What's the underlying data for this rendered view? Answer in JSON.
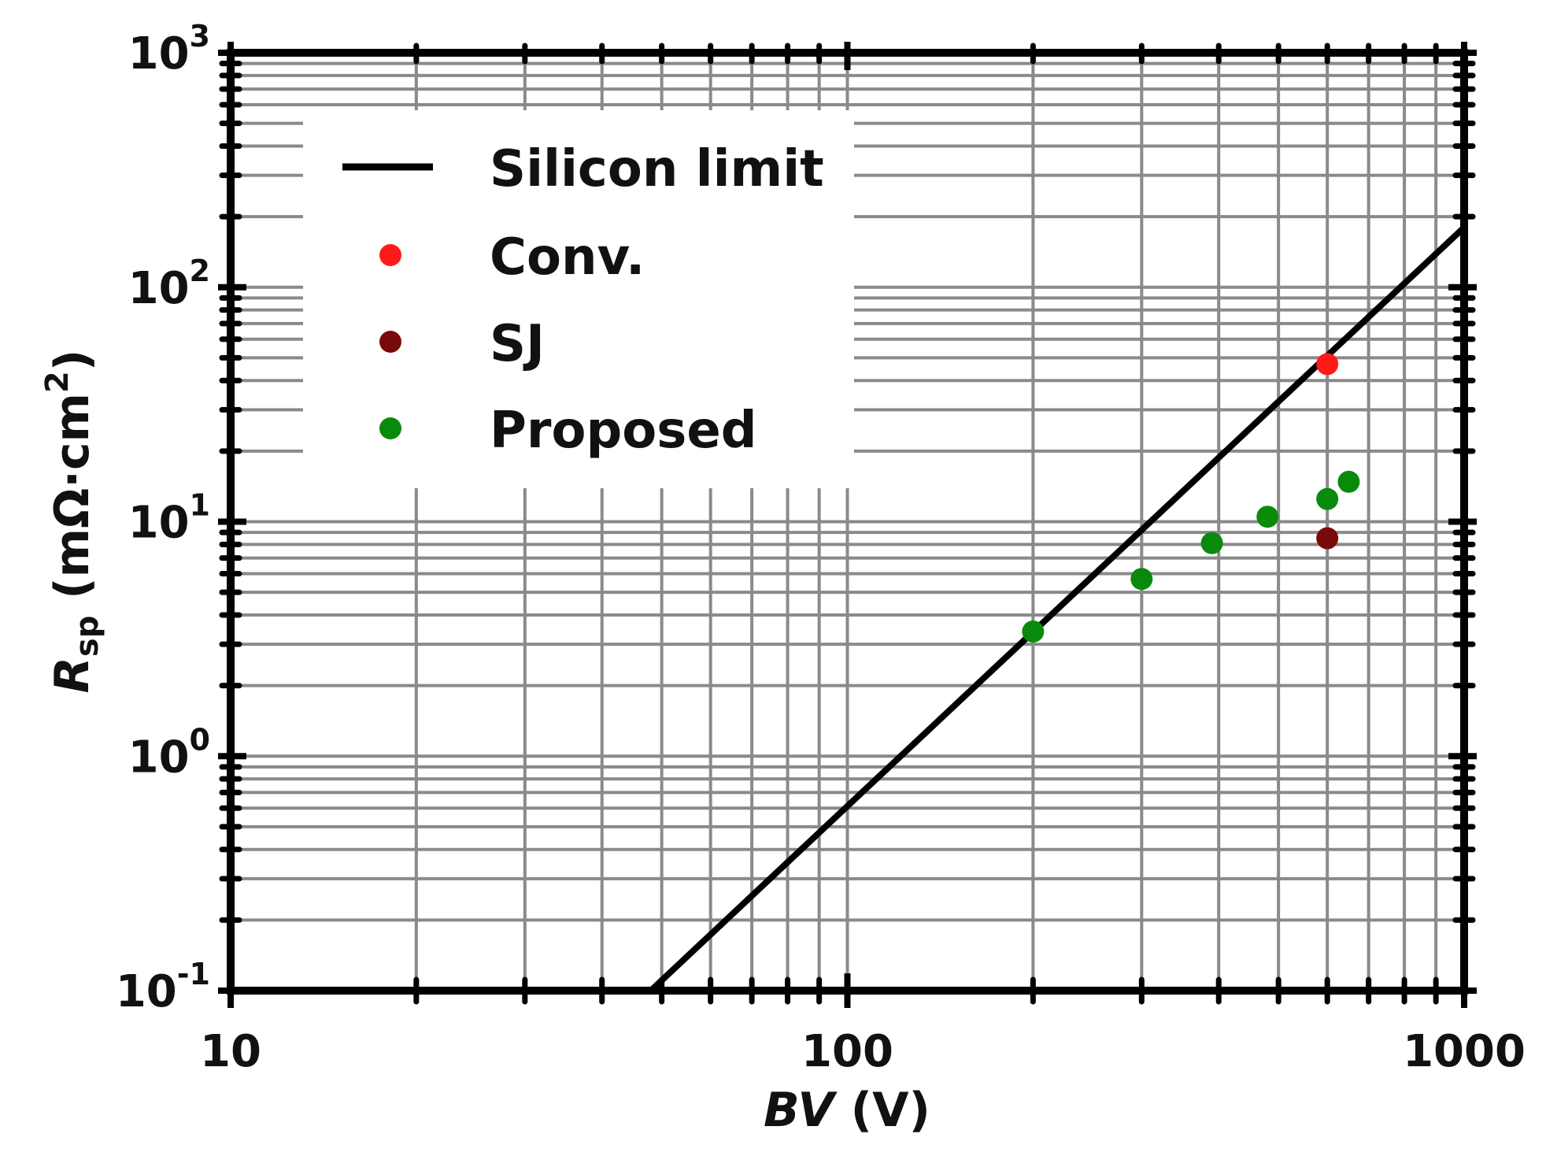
{
  "chart_data": {
    "type": "scatter",
    "x_scale": "log",
    "y_scale": "log",
    "xlim": [
      10,
      1000
    ],
    "ylim": [
      0.1,
      1000
    ],
    "grid": true,
    "legend_position": "top-left",
    "xlabel": {
      "italic": "BV",
      "rest": " (V)"
    },
    "ylabel": {
      "italic": "R",
      "sub": "sp",
      "rest": " (mΩ·cm",
      "sup": "2",
      "close": ")"
    },
    "x_ticks": [
      {
        "value": 10,
        "label": "10"
      },
      {
        "value": 100,
        "label": "100"
      },
      {
        "value": 1000,
        "label": "1000"
      }
    ],
    "y_ticks": [
      {
        "value": 0.1,
        "base": "10",
        "exp": "-1"
      },
      {
        "value": 1,
        "base": "10",
        "exp": "0"
      },
      {
        "value": 10,
        "base": "10",
        "exp": "1"
      },
      {
        "value": 100,
        "base": "10",
        "exp": "2"
      },
      {
        "value": 1000,
        "base": "10",
        "exp": "3"
      }
    ],
    "series": [
      {
        "name": "Silicon limit",
        "kind": "line",
        "color": "#000000",
        "x": [
          48,
          1000
        ],
        "y": [
          0.1,
          180
        ]
      },
      {
        "name": "Conv.",
        "kind": "scatter",
        "color": "#ff1a1a",
        "x": [
          600
        ],
        "y": [
          47
        ]
      },
      {
        "name": "SJ",
        "kind": "scatter",
        "color": "#7a0a0a",
        "x": [
          600
        ],
        "y": [
          8.5
        ]
      },
      {
        "name": "Proposed",
        "kind": "scatter",
        "color": "#0a8a0a",
        "x": [
          200,
          300,
          390,
          480,
          600,
          650
        ],
        "y": [
          3.4,
          5.7,
          8.1,
          10.5,
          12.5,
          14.8
        ]
      }
    ]
  }
}
